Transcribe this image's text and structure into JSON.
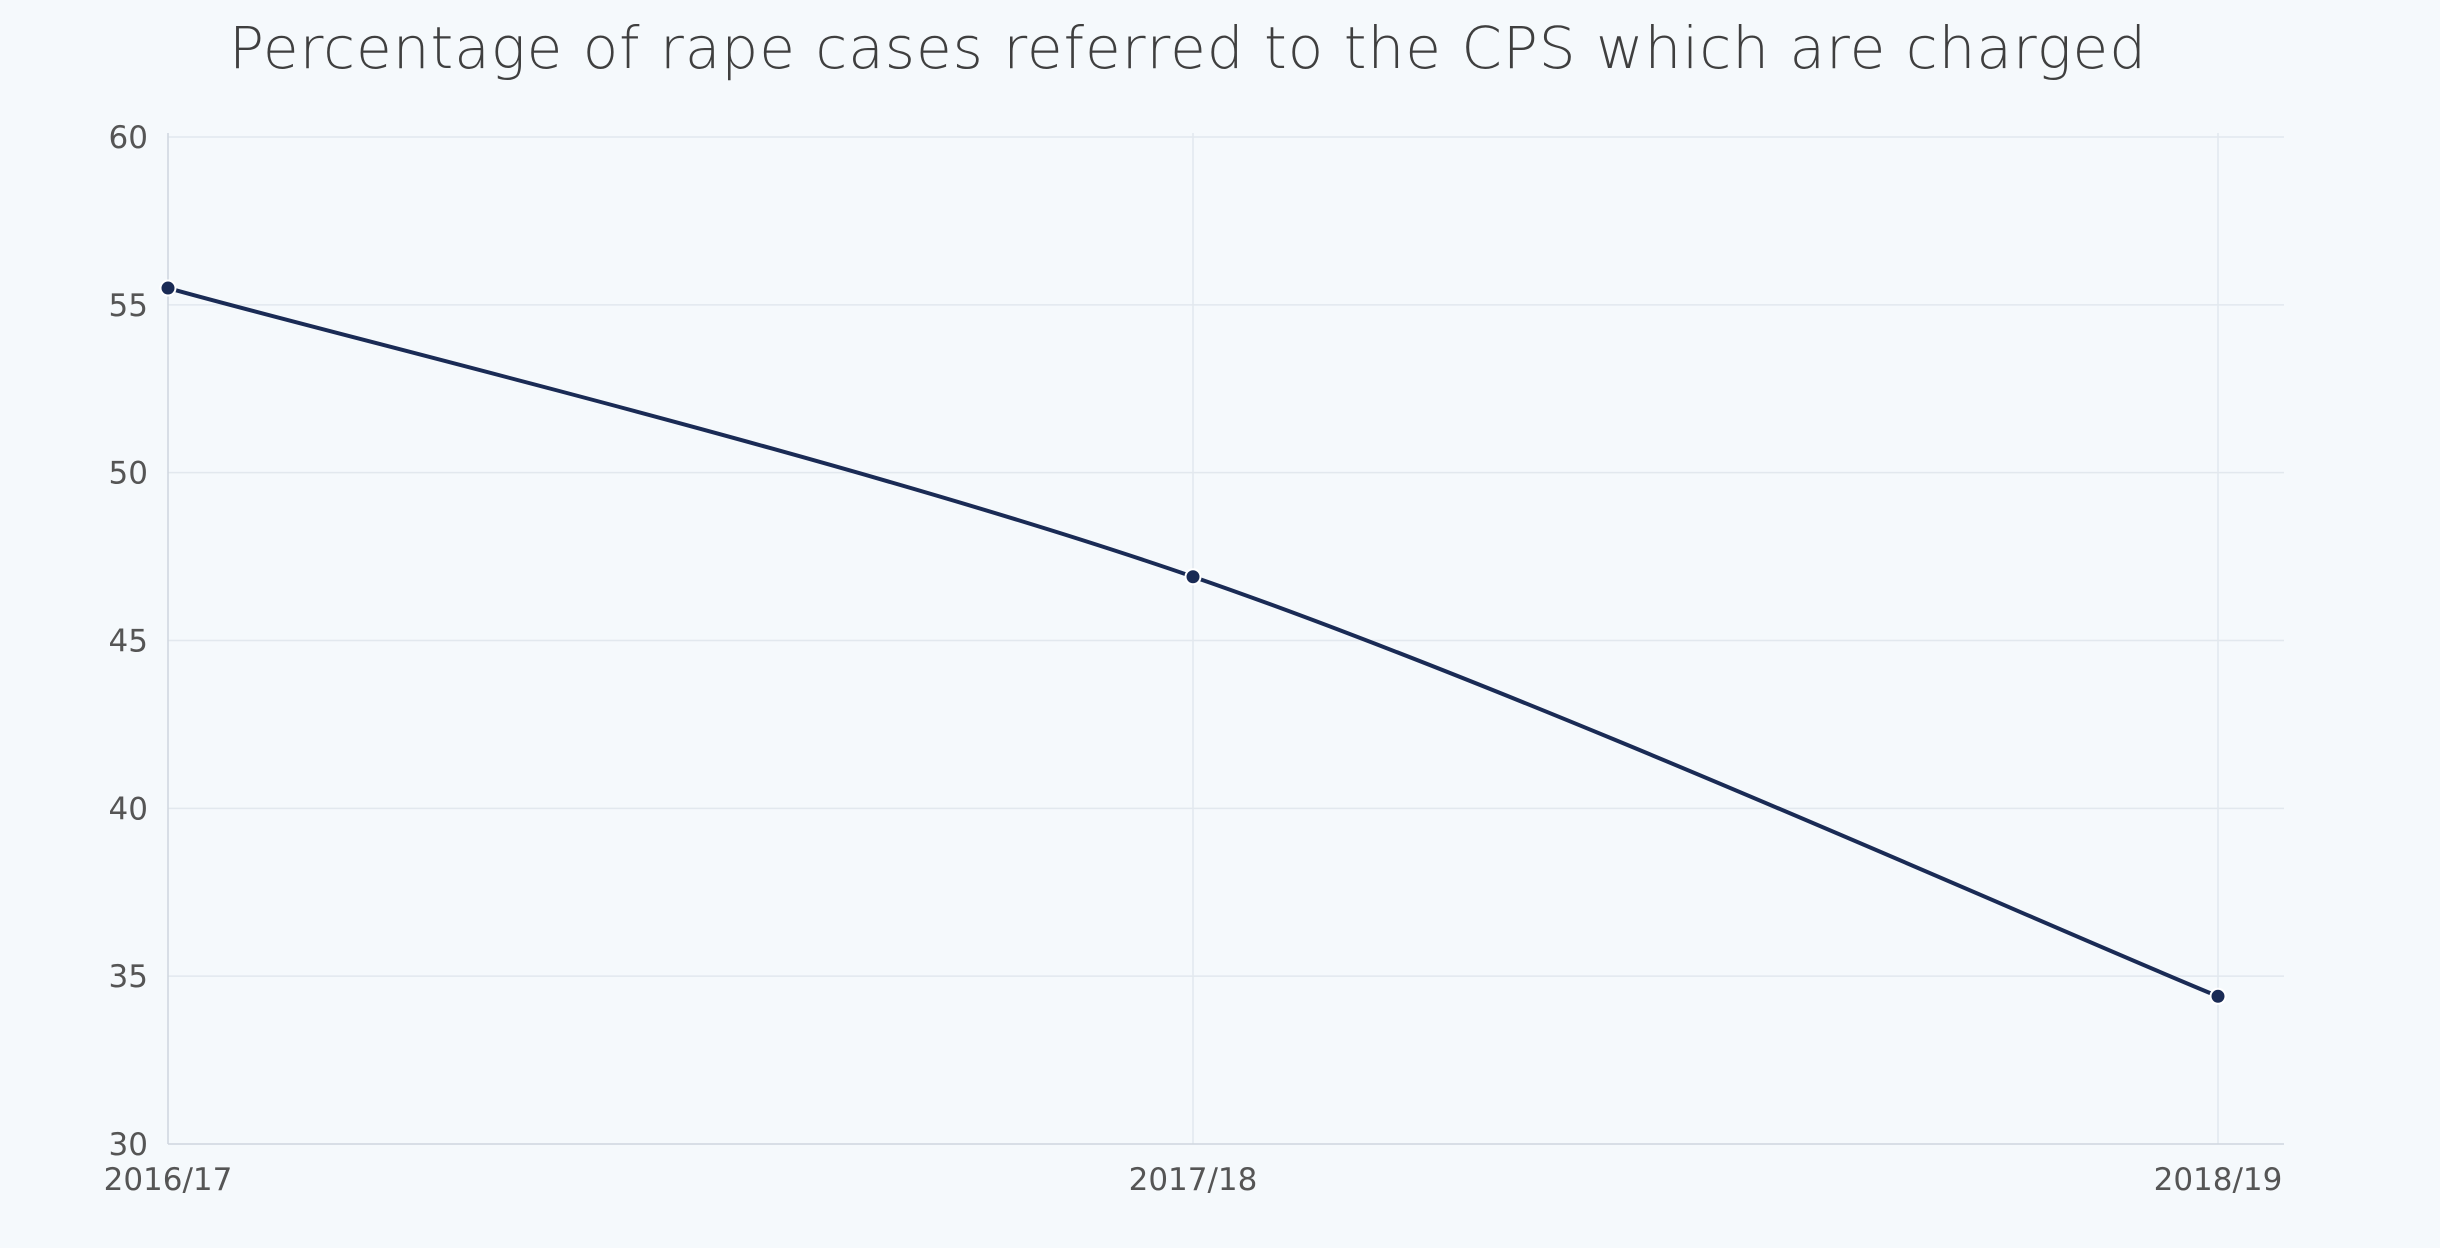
{
  "chart_data": {
    "type": "line",
    "title": "Percentage of rape cases referred to the CPS which are charged",
    "xlabel": "",
    "ylabel": "",
    "categories": [
      "2016/17",
      "2017/18",
      "2018/19"
    ],
    "series": [
      {
        "values": [
          55.5,
          46.9,
          34.4
        ]
      }
    ],
    "ylim": [
      30,
      60
    ],
    "yticks": [
      30,
      35,
      40,
      45,
      50,
      55,
      60
    ],
    "grid": true,
    "legend": "none",
    "line_shape": "smooth",
    "colors": {
      "line": "#1a2b55",
      "grid": "#e2e8ee",
      "axis": "#cfd6de",
      "background": "#f5f9fc"
    }
  }
}
